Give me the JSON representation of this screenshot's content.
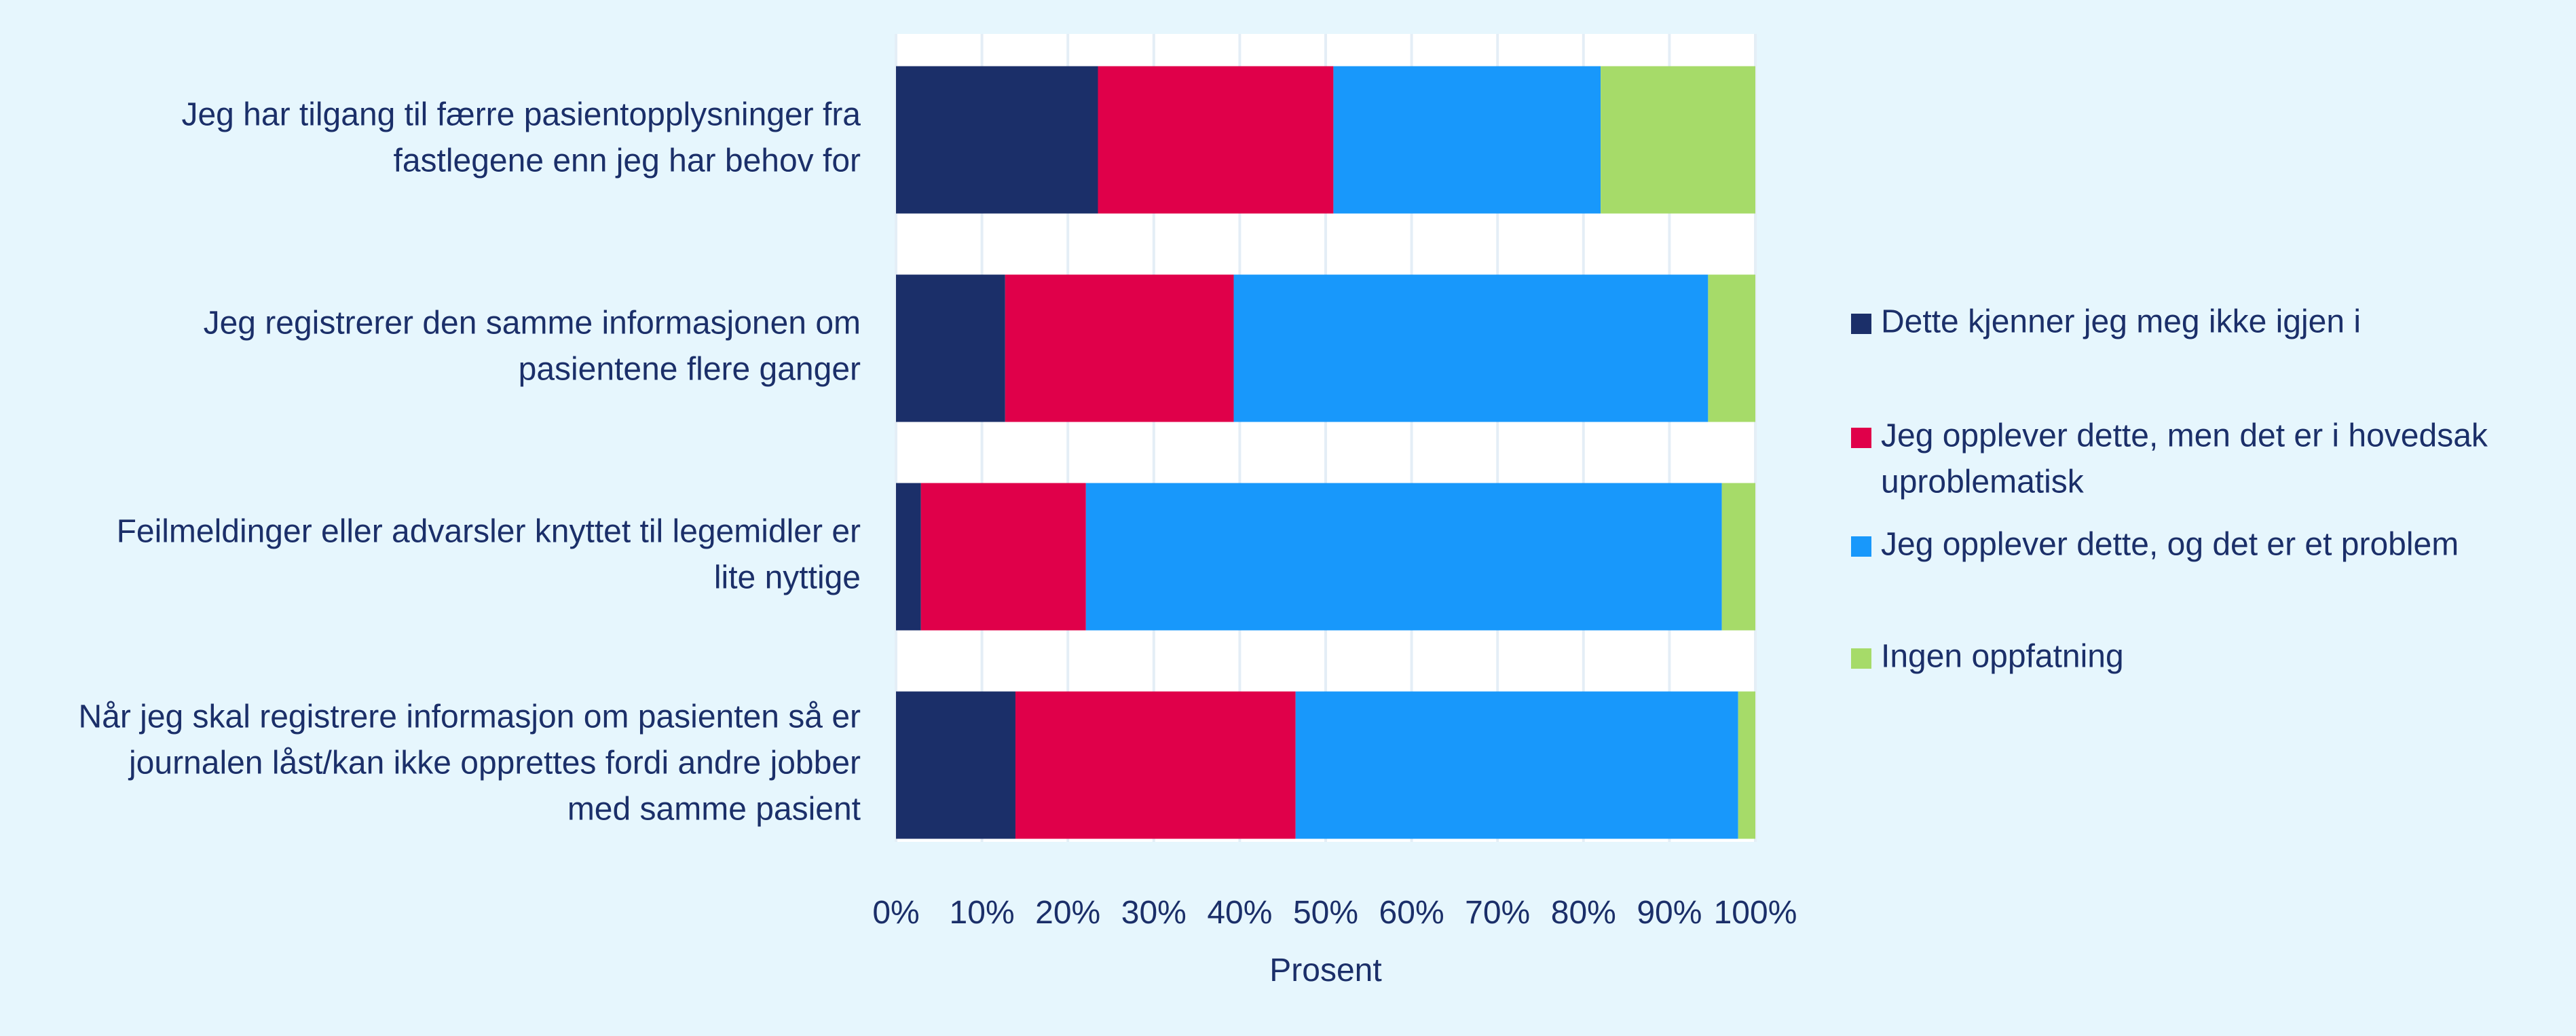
{
  "chart_data": {
    "type": "bar",
    "orientation": "horizontal",
    "stacked": true,
    "categories": [
      "Jeg har tilgang til færre pasientopplysninger fra fastlegene enn jeg har behov for",
      "Jeg registrerer den samme informasjonen om pasientene flere ganger",
      "Feilmeldinger eller advarsler knyttet til legemidler er lite nyttige",
      "Når jeg skal registrere informasjon om pasienten så er journalen låst/kan ikke opprettes fordi andre jobber med samme pasient"
    ],
    "category_lines": [
      [
        "Jeg har tilgang til færre pasientopplysninger fra",
        "fastlegene enn jeg har behov for"
      ],
      [
        "Jeg registrerer den samme informasjonen om",
        "pasientene flere ganger"
      ],
      [
        "Feilmeldinger eller advarsler knyttet til legemidler er",
        "lite nyttige"
      ],
      [
        "Når jeg skal registrere informasjon om pasienten så er",
        "journalen låst/kan ikke opprettes fordi andre jobber",
        "med samme pasient"
      ]
    ],
    "series": [
      {
        "name": "Dette kjenner jeg meg ikke igjen i",
        "color": "#1b2f69",
        "values": [
          23.5,
          12.7,
          2.9,
          13.9
        ]
      },
      {
        "name": "Jeg opplever dette, men det er i hovedsak uproblematisk",
        "color": "#e0004a",
        "values": [
          27.4,
          26.6,
          19.2,
          32.6
        ]
      },
      {
        "name": "Jeg opplever dette, og det er et problem",
        "color": "#1898fb",
        "values": [
          31.1,
          55.2,
          74.0,
          51.5
        ]
      },
      {
        "name": "Ingen oppfatning",
        "color": "#a6db69",
        "values": [
          18.0,
          5.5,
          3.9,
          2.0
        ]
      }
    ],
    "legend_lines": [
      [
        "Dette kjenner jeg meg ikke igjen i"
      ],
      [
        "Jeg opplever dette, men det er i hovedsak",
        "uproblematisk"
      ],
      [
        "Jeg opplever dette, og det er et problem"
      ],
      [
        "Ingen oppfatning"
      ]
    ],
    "x_ticks": [
      "0%",
      "10%",
      "20%",
      "30%",
      "40%",
      "50%",
      "60%",
      "70%",
      "80%",
      "90%",
      "100%"
    ],
    "xlabel": "Prosent",
    "ylabel": "",
    "title": "",
    "xlim": [
      0,
      100
    ],
    "grid": true,
    "legend_position": "right"
  }
}
